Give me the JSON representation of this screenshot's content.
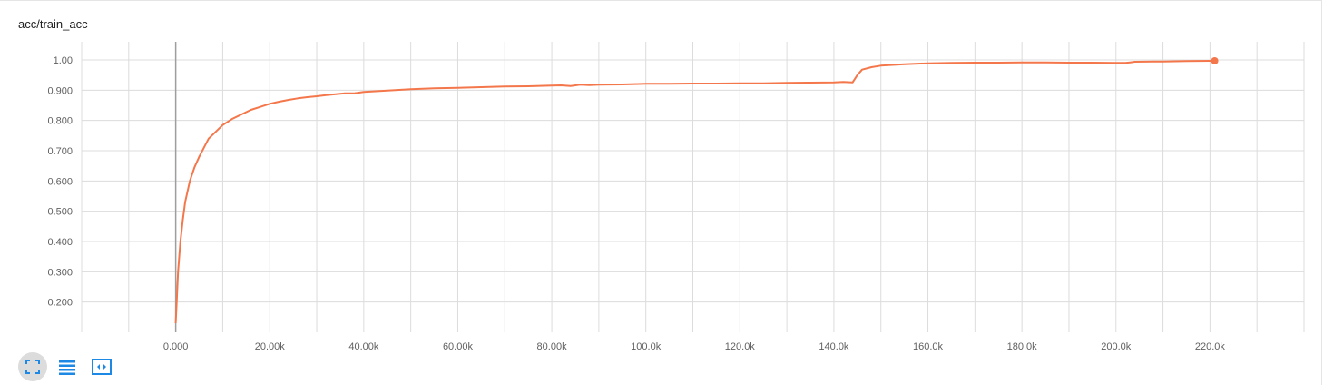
{
  "card": {
    "title": "acc/train_acc"
  },
  "chart_data": {
    "type": "line",
    "title": "acc/train_acc",
    "xlabel": "",
    "ylabel": "",
    "xlim": [
      -20000,
      240000
    ],
    "ylim": [
      0.1,
      1.06
    ],
    "x_ticks": [
      0,
      20000,
      40000,
      60000,
      80000,
      100000,
      120000,
      140000,
      160000,
      180000,
      200000,
      220000
    ],
    "x_tick_labels": [
      "0.000",
      "20.00k",
      "40.00k",
      "60.00k",
      "80.00k",
      "100.0k",
      "120.0k",
      "140.0k",
      "160.0k",
      "180.0k",
      "200.0k",
      "220.0k"
    ],
    "y_ticks": [
      0.2,
      0.3,
      0.4,
      0.5,
      0.6,
      0.7,
      0.8,
      0.9,
      1.0
    ],
    "y_tick_labels": [
      "0.200",
      "0.300",
      "0.400",
      "0.500",
      "0.600",
      "0.700",
      "0.800",
      "0.900",
      "1.00"
    ],
    "grid": true,
    "series": [
      {
        "color": "#f4774b",
        "x": [
          0,
          200,
          500,
          1000,
          1500,
          2000,
          3000,
          4000,
          5000,
          6000,
          7000,
          8000,
          10000,
          12000,
          14000,
          16000,
          18000,
          20000,
          22000,
          24000,
          26000,
          28000,
          30000,
          32000,
          34000,
          36000,
          38000,
          40000,
          45000,
          50000,
          55000,
          60000,
          65000,
          70000,
          75000,
          80000,
          82000,
          84000,
          86000,
          88000,
          90000,
          95000,
          100000,
          105000,
          110000,
          115000,
          120000,
          125000,
          130000,
          135000,
          140000,
          142000,
          144000,
          145000,
          146000,
          148000,
          150000,
          155000,
          160000,
          165000,
          170000,
          175000,
          180000,
          185000,
          190000,
          195000,
          200000,
          202000,
          203000,
          204000,
          210000,
          215000,
          220000,
          221000
        ],
        "y": [
          0.13,
          0.2,
          0.3,
          0.4,
          0.47,
          0.53,
          0.6,
          0.645,
          0.68,
          0.71,
          0.74,
          0.755,
          0.785,
          0.805,
          0.82,
          0.835,
          0.845,
          0.855,
          0.862,
          0.868,
          0.873,
          0.877,
          0.88,
          0.884,
          0.887,
          0.89,
          0.89,
          0.894,
          0.899,
          0.903,
          0.906,
          0.908,
          0.91,
          0.912,
          0.913,
          0.915,
          0.916,
          0.914,
          0.918,
          0.917,
          0.918,
          0.919,
          0.921,
          0.921,
          0.922,
          0.922,
          0.923,
          0.923,
          0.924,
          0.925,
          0.926,
          0.927,
          0.926,
          0.95,
          0.968,
          0.976,
          0.981,
          0.986,
          0.989,
          0.99,
          0.991,
          0.991,
          0.992,
          0.992,
          0.991,
          0.991,
          0.99,
          0.99,
          0.992,
          0.994,
          0.995,
          0.996,
          0.997,
          0.997
        ]
      }
    ]
  },
  "toolbar": {
    "items": [
      {
        "name": "expand-icon",
        "active": true
      },
      {
        "name": "log-scale-icon",
        "active": false
      },
      {
        "name": "fit-domain-icon",
        "active": false
      }
    ],
    "accent": "#1e88e5"
  }
}
